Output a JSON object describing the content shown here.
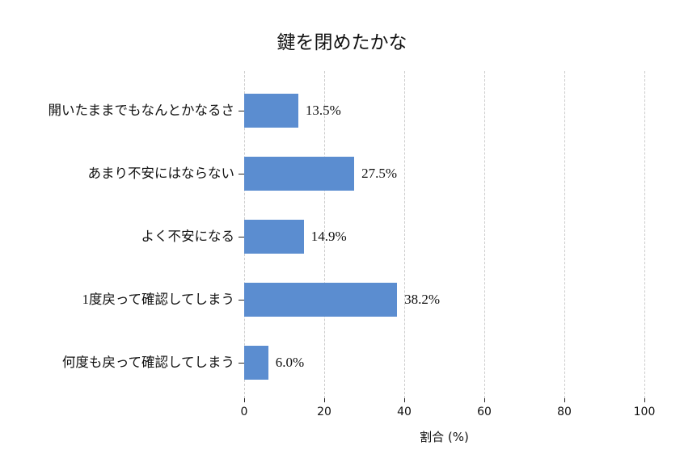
{
  "chart_data": {
    "type": "bar",
    "orientation": "horizontal",
    "title": "鍵を閉めたかな",
    "categories": [
      "開いたままでもなんとかなるさ",
      "あまり不安にはならない",
      "よく不安になる",
      "1度戻って確認してしまう",
      "何度も戻って確認してしまう"
    ],
    "values": [
      13.5,
      27.5,
      14.9,
      38.2,
      6.0
    ],
    "value_labels": [
      "13.5%",
      "27.5%",
      "14.9%",
      "38.2%",
      "6.0%"
    ],
    "xlabel": "割合 (%)",
    "xticks": [
      0,
      20,
      40,
      60,
      80,
      100
    ],
    "xtick_labels": [
      "0",
      "20",
      "40",
      "60",
      "80",
      "100"
    ],
    "xlim": [
      0,
      100
    ],
    "legend": "none",
    "grid": "vertical-dashed",
    "colors": {
      "bar": "#5b8dd0",
      "gridline": "#cccccc",
      "text": "#111111"
    }
  }
}
